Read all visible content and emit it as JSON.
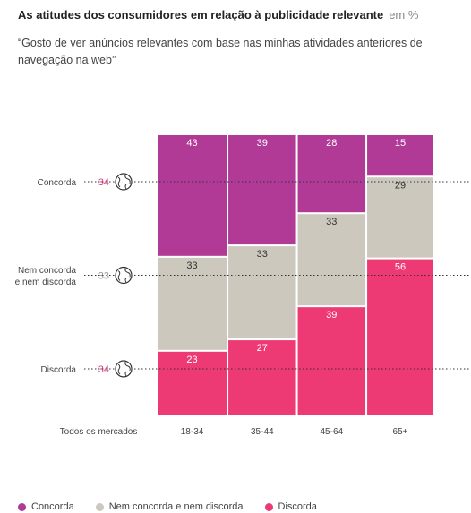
{
  "header": {
    "title": "As atitudes dos consumidores em relação à publicidade relevante",
    "unit": "em %",
    "subtitle": "“Gosto de ver anúncios relevantes com base nas minhas atividades anteriores de navegação na web”"
  },
  "colors": {
    "concorda": "#b03a96",
    "neutral": "#ccc8be",
    "discorda": "#ee3a74",
    "globe_value": "#d63f86"
  },
  "chart_data": {
    "type": "bar",
    "stacked": true,
    "categories": [
      "18-34",
      "35-44",
      "45-64",
      "65+"
    ],
    "series": [
      {
        "name": "Concorda",
        "values": [
          43,
          39,
          28,
          15
        ]
      },
      {
        "name": "Nem concorda e nem discorda",
        "values": [
          33,
          33,
          33,
          29
        ]
      },
      {
        "name": "Discorda",
        "values": [
          23,
          27,
          39,
          56
        ]
      }
    ],
    "all_markets": {
      "label": "Todos os mercados",
      "items": [
        {
          "label": "Concorda",
          "value": 34
        },
        {
          "label": "Nem concorda e nem discorda",
          "value": 33
        },
        {
          "label": "Discorda",
          "value": 34
        }
      ]
    },
    "ylim": [
      0,
      100
    ]
  },
  "legend": [
    {
      "label": "Concorda",
      "color": "#b03a96"
    },
    {
      "label": "Nem concorda e nem discorda",
      "color": "#ccc8be"
    },
    {
      "label": "Discorda",
      "color": "#ee3a74"
    }
  ]
}
